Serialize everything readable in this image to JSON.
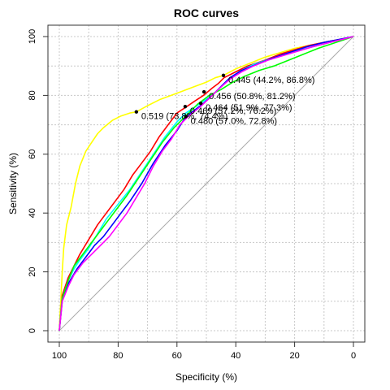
{
  "chart_data": {
    "type": "line",
    "title": "ROC curves",
    "xlabel": "Specificity (%)",
    "ylabel": "Sensitivity (%)",
    "xlim": [
      100,
      0
    ],
    "ylim": [
      0,
      100
    ],
    "x_reversed": true,
    "grid": true,
    "x_ticks": [
      100,
      80,
      60,
      40,
      20,
      0
    ],
    "y_ticks": [
      0,
      20,
      40,
      60,
      80,
      100
    ],
    "diagonal_color": "#aaaaaa",
    "series": [
      {
        "color": "#ffff00",
        "points": [
          [
            100,
            0
          ],
          [
            99.5,
            10
          ],
          [
            99,
            20
          ],
          [
            98.5,
            28
          ],
          [
            97.5,
            36
          ],
          [
            96,
            42
          ],
          [
            94.5,
            50
          ],
          [
            93,
            56
          ],
          [
            91,
            61
          ],
          [
            89,
            64
          ],
          [
            87,
            67
          ],
          [
            85,
            69
          ],
          [
            82,
            71.5
          ],
          [
            79,
            73
          ],
          [
            76,
            74
          ],
          [
            73.8,
            74.4
          ],
          [
            70,
            76.5
          ],
          [
            66,
            78.5
          ],
          [
            62,
            80
          ],
          [
            58,
            81.5
          ],
          [
            54,
            83
          ],
          [
            50,
            84.5
          ],
          [
            47,
            86
          ],
          [
            44.2,
            86.8
          ],
          [
            40,
            89
          ],
          [
            35,
            91
          ],
          [
            30,
            93
          ],
          [
            25,
            94.5
          ],
          [
            20,
            96
          ],
          [
            15,
            97
          ],
          [
            10,
            98
          ],
          [
            5,
            99
          ],
          [
            0,
            100
          ]
        ]
      },
      {
        "color": "#ff0000",
        "points": [
          [
            100,
            0
          ],
          [
            99,
            12
          ],
          [
            97,
            18
          ],
          [
            95,
            22
          ],
          [
            93,
            26
          ],
          [
            90,
            31
          ],
          [
            87,
            36
          ],
          [
            84,
            40
          ],
          [
            81,
            44
          ],
          [
            78,
            48
          ],
          [
            75,
            53
          ],
          [
            72,
            57
          ],
          [
            69,
            61
          ],
          [
            66,
            66
          ],
          [
            63,
            70
          ],
          [
            60,
            74
          ],
          [
            57,
            76
          ],
          [
            54,
            78
          ],
          [
            51,
            80
          ],
          [
            48,
            82.5
          ],
          [
            46,
            84
          ],
          [
            44,
            86
          ],
          [
            40,
            88
          ],
          [
            36,
            90
          ],
          [
            30,
            92
          ],
          [
            25,
            94
          ],
          [
            20,
            95.5
          ],
          [
            15,
            97
          ],
          [
            10,
            98
          ],
          [
            5,
            99
          ],
          [
            0,
            100
          ]
        ]
      },
      {
        "color": "#00ffff",
        "points": [
          [
            100,
            0
          ],
          [
            99,
            11
          ],
          [
            97,
            17
          ],
          [
            95,
            21
          ],
          [
            93,
            24
          ],
          [
            90,
            28
          ],
          [
            87,
            33
          ],
          [
            84,
            38
          ],
          [
            80,
            43
          ],
          [
            76,
            48
          ],
          [
            72,
            54
          ],
          [
            68,
            60
          ],
          [
            64,
            66
          ],
          [
            60,
            71
          ],
          [
            57,
            74
          ],
          [
            54,
            76
          ],
          [
            51,
            78
          ],
          [
            48,
            80
          ],
          [
            45,
            83
          ],
          [
            42,
            86
          ],
          [
            38,
            88.5
          ],
          [
            34,
            90.5
          ],
          [
            28,
            92.5
          ],
          [
            22,
            94.5
          ],
          [
            16,
            96
          ],
          [
            10,
            97.5
          ],
          [
            5,
            99
          ],
          [
            0,
            100
          ]
        ]
      },
      {
        "color": "#0000ff",
        "points": [
          [
            100,
            0
          ],
          [
            99,
            10
          ],
          [
            97,
            16
          ],
          [
            94,
            21
          ],
          [
            91,
            25
          ],
          [
            88,
            29
          ],
          [
            85,
            32
          ],
          [
            82,
            36
          ],
          [
            79,
            40
          ],
          [
            76,
            44
          ],
          [
            72,
            50
          ],
          [
            68,
            57
          ],
          [
            64,
            63
          ],
          [
            60,
            68
          ],
          [
            57,
            72.8
          ],
          [
            54,
            75
          ],
          [
            51,
            77.3
          ],
          [
            48,
            80
          ],
          [
            45,
            83
          ],
          [
            42,
            86
          ],
          [
            38,
            88.5
          ],
          [
            33,
            90.5
          ],
          [
            28,
            92.5
          ],
          [
            22,
            94.5
          ],
          [
            16,
            96.5
          ],
          [
            10,
            98
          ],
          [
            5,
            99
          ],
          [
            0,
            100
          ]
        ]
      },
      {
        "color": "#00ff00",
        "points": [
          [
            100,
            0
          ],
          [
            99,
            11
          ],
          [
            97,
            17
          ],
          [
            95,
            22
          ],
          [
            92,
            26
          ],
          [
            89,
            30
          ],
          [
            86,
            34
          ],
          [
            83,
            38
          ],
          [
            80,
            42
          ],
          [
            77,
            46
          ],
          [
            73,
            52
          ],
          [
            69,
            58
          ],
          [
            65,
            64
          ],
          [
            61,
            69
          ],
          [
            57,
            73
          ],
          [
            53,
            77
          ],
          [
            49,
            80
          ],
          [
            45,
            82
          ],
          [
            41,
            84.5
          ],
          [
            37,
            86.5
          ],
          [
            32,
            88.5
          ],
          [
            27,
            90
          ],
          [
            22,
            92
          ],
          [
            17,
            94
          ],
          [
            12,
            96
          ],
          [
            6,
            98
          ],
          [
            0,
            100
          ]
        ]
      },
      {
        "color": "#ff00ff",
        "points": [
          [
            100,
            0
          ],
          [
            99,
            10
          ],
          [
            97,
            15
          ],
          [
            95,
            19
          ],
          [
            92,
            23
          ],
          [
            89,
            26
          ],
          [
            86,
            29
          ],
          [
            83,
            32
          ],
          [
            80,
            36
          ],
          [
            77,
            40
          ],
          [
            74,
            45
          ],
          [
            71,
            50
          ],
          [
            68,
            56
          ],
          [
            65,
            61
          ],
          [
            62,
            65
          ],
          [
            59,
            70
          ],
          [
            56,
            73
          ],
          [
            52,
            76.2
          ],
          [
            49,
            79
          ],
          [
            46,
            82
          ],
          [
            42,
            85.5
          ],
          [
            38,
            88
          ],
          [
            34,
            90
          ],
          [
            29,
            92
          ],
          [
            24,
            93.5
          ],
          [
            19,
            95
          ],
          [
            14,
            96.5
          ],
          [
            8,
            98
          ],
          [
            0,
            100
          ]
        ]
      }
    ],
    "annotations": [
      {
        "x": 73.8,
        "y": 74.4,
        "text": "0.519 (73.8%, 74.4%)"
      },
      {
        "x": 44.2,
        "y": 86.8,
        "text": "0.445 (44.2%, 86.8%)"
      },
      {
        "x": 50.8,
        "y": 81.2,
        "text": "0.456 (50.8%, 81.2%)"
      },
      {
        "x": 51.9,
        "y": 77.3,
        "text": "0.464 (51.9%, 77.3%)"
      },
      {
        "x": 57.2,
        "y": 76.2,
        "text": "0.469 (57.2%, 76.2%)"
      },
      {
        "x": 57.0,
        "y": 72.8,
        "text": "0.480 (57.0%, 72.8%)"
      }
    ]
  }
}
